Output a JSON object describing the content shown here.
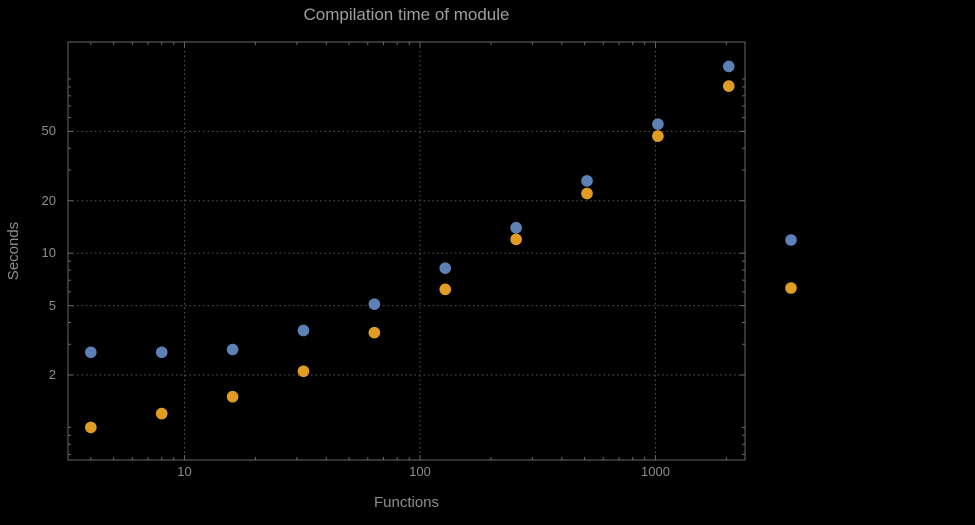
{
  "chart": {
    "title": "Compilation time of module",
    "xlabel": "Functions",
    "ylabel": "Seconds"
  },
  "colors": {
    "background": "#000000",
    "title": "#9e9e9e",
    "axis_label": "#8c8c8c",
    "tick_label": "#8c8c8c",
    "frame": "#696969",
    "gridline": "#565656",
    "series_blue": "#5e81b5",
    "series_orange": "#e19c24"
  },
  "chart_data": {
    "type": "scatter",
    "title": "Compilation time of module",
    "xlabel": "Functions",
    "ylabel": "Seconds",
    "x_scale": "log",
    "y_scale": "log",
    "xlim": [
      3.2,
      2400
    ],
    "ylim": [
      0.65,
      163
    ],
    "x_ticks": [
      10,
      100,
      1000
    ],
    "x_tick_labels": [
      "10",
      "100",
      "1000"
    ],
    "y_ticks": [
      2,
      5,
      10,
      20,
      50
    ],
    "y_tick_labels": [
      "2",
      "5",
      "10",
      "20",
      "50"
    ],
    "grid": "dotted",
    "legend_position": "right-outside",
    "x": [
      4,
      8,
      16,
      32,
      64,
      128,
      256,
      512,
      1024,
      2048
    ],
    "series": [
      {
        "name": "series-blue",
        "color": "#5e81b5",
        "values": [
          2.7,
          2.7,
          2.8,
          3.6,
          5.1,
          8.2,
          14,
          26,
          55,
          118
        ]
      },
      {
        "name": "series-orange",
        "color": "#e19c24",
        "values": [
          1.0,
          1.2,
          1.5,
          2.1,
          3.5,
          6.2,
          12,
          22,
          47,
          91
        ]
      }
    ]
  }
}
